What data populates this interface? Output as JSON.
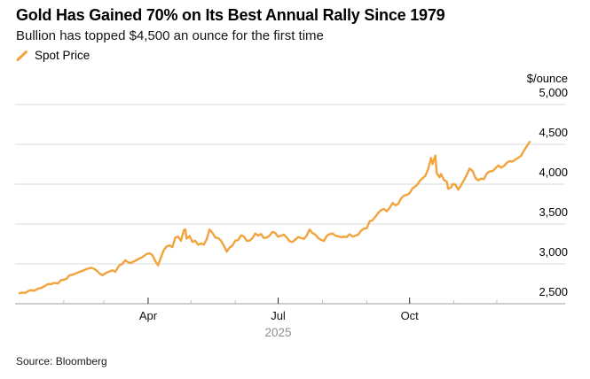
{
  "header": {
    "title": "Gold Has Gained 70% on Its Best Annual Rally Since 1979",
    "subtitle": "Bullion has topped $4,500 an ounce for the first time"
  },
  "legend": {
    "items": [
      {
        "label": "Spot Price",
        "marker": "slash-icon",
        "color": "#F2A33C"
      }
    ]
  },
  "source": "Source: Bloomberg",
  "colors": {
    "accent": "#F2A33C",
    "grid": "#d9d9d9",
    "axis": "#9c9c9c",
    "major_tick": "#2b2b2b",
    "minor_tick": "#bfbfbf",
    "year_text": "#8d8d8d"
  },
  "chart_data": {
    "type": "line",
    "title": "Gold Has Gained 70% on Its Best Annual Rally Since 1979",
    "unit_label": "$/ounce",
    "x_year_label": "2025",
    "ylim": [
      2500,
      5000
    ],
    "y_ticks": [
      5000,
      4500,
      4000,
      3500,
      3000,
      2500
    ],
    "grid": "horizontal-only",
    "legend_position": "top-left",
    "x_unit": "days-since-jan-1-2025",
    "x_ticks": [
      {
        "day": 31,
        "label": "",
        "major": false
      },
      {
        "day": 59,
        "label": "",
        "major": false
      },
      {
        "day": 90,
        "label": "Apr",
        "major": true
      },
      {
        "day": 120,
        "label": "",
        "major": false
      },
      {
        "day": 151,
        "label": "",
        "major": false
      },
      {
        "day": 181,
        "label": "Jul",
        "major": true
      },
      {
        "day": 212,
        "label": "",
        "major": false
      },
      {
        "day": 243,
        "label": "",
        "major": false
      },
      {
        "day": 273,
        "label": "Oct",
        "major": true
      },
      {
        "day": 304,
        "label": "",
        "major": false
      },
      {
        "day": 334,
        "label": "",
        "major": false
      }
    ],
    "series": [
      {
        "name": "Spot Price",
        "color": "#F2A33C",
        "points": [
          [
            0,
            2632
          ],
          [
            2,
            2640
          ],
          [
            4,
            2634
          ],
          [
            6,
            2658
          ],
          [
            8,
            2671
          ],
          [
            10,
            2662
          ],
          [
            13,
            2690
          ],
          [
            15,
            2697
          ],
          [
            17,
            2716
          ],
          [
            20,
            2748
          ],
          [
            22,
            2744
          ],
          [
            24,
            2762
          ],
          [
            27,
            2754
          ],
          [
            29,
            2796
          ],
          [
            31,
            2800
          ],
          [
            33,
            2816
          ],
          [
            35,
            2858
          ],
          [
            37,
            2862
          ],
          [
            40,
            2886
          ],
          [
            42,
            2900
          ],
          [
            45,
            2920
          ],
          [
            47,
            2936
          ],
          [
            50,
            2951
          ],
          [
            52,
            2940
          ],
          [
            54,
            2915
          ],
          [
            56,
            2880
          ],
          [
            58,
            2858
          ],
          [
            61,
            2890
          ],
          [
            63,
            2906
          ],
          [
            65,
            2920
          ],
          [
            67,
            2900
          ],
          [
            70,
            2984
          ],
          [
            72,
            3000
          ],
          [
            74,
            3046
          ],
          [
            76,
            3020
          ],
          [
            78,
            3012
          ],
          [
            81,
            3040
          ],
          [
            83,
            3060
          ],
          [
            86,
            3086
          ],
          [
            89,
            3124
          ],
          [
            91,
            3132
          ],
          [
            93,
            3110
          ],
          [
            95,
            3036
          ],
          [
            97,
            2982
          ],
          [
            99,
            3080
          ],
          [
            101,
            3176
          ],
          [
            103,
            3220
          ],
          [
            105,
            3232
          ],
          [
            107,
            3210
          ],
          [
            109,
            3330
          ],
          [
            111,
            3342
          ],
          [
            113,
            3290
          ],
          [
            115,
            3424
          ],
          [
            116,
            3432
          ],
          [
            117,
            3316
          ],
          [
            119,
            3350
          ],
          [
            121,
            3276
          ],
          [
            123,
            3290
          ],
          [
            125,
            3240
          ],
          [
            127,
            3256
          ],
          [
            129,
            3242
          ],
          [
            131,
            3310
          ],
          [
            133,
            3432
          ],
          [
            135,
            3390
          ],
          [
            137,
            3330
          ],
          [
            139,
            3324
          ],
          [
            141,
            3290
          ],
          [
            143,
            3230
          ],
          [
            145,
            3152
          ],
          [
            147,
            3204
          ],
          [
            149,
            3230
          ],
          [
            151,
            3292
          ],
          [
            153,
            3298
          ],
          [
            155,
            3358
          ],
          [
            157,
            3344
          ],
          [
            159,
            3288
          ],
          [
            161,
            3292
          ],
          [
            163,
            3322
          ],
          [
            165,
            3381
          ],
          [
            167,
            3355
          ],
          [
            169,
            3375
          ],
          [
            171,
            3324
          ],
          [
            173,
            3330
          ],
          [
            175,
            3355
          ],
          [
            177,
            3402
          ],
          [
            179,
            3388
          ],
          [
            181,
            3340
          ],
          [
            183,
            3352
          ],
          [
            185,
            3368
          ],
          [
            187,
            3330
          ],
          [
            189,
            3284
          ],
          [
            191,
            3274
          ],
          [
            193,
            3303
          ],
          [
            195,
            3337
          ],
          [
            197,
            3326
          ],
          [
            199,
            3313
          ],
          [
            201,
            3355
          ],
          [
            203,
            3431
          ],
          [
            205,
            3387
          ],
          [
            207,
            3368
          ],
          [
            209,
            3325
          ],
          [
            211,
            3301
          ],
          [
            213,
            3289
          ],
          [
            215,
            3352
          ],
          [
            217,
            3373
          ],
          [
            219,
            3381
          ],
          [
            221,
            3355
          ],
          [
            223,
            3345
          ],
          [
            225,
            3335
          ],
          [
            227,
            3342
          ],
          [
            229,
            3336
          ],
          [
            231,
            3372
          ],
          [
            233,
            3342
          ],
          [
            235,
            3352
          ],
          [
            237,
            3367
          ],
          [
            239,
            3416
          ],
          [
            241,
            3442
          ],
          [
            243,
            3448
          ],
          [
            245,
            3533
          ],
          [
            247,
            3547
          ],
          [
            249,
            3590
          ],
          [
            251,
            3640
          ],
          [
            253,
            3675
          ],
          [
            255,
            3689
          ],
          [
            257,
            3660
          ],
          [
            259,
            3700
          ],
          [
            261,
            3763
          ],
          [
            263,
            3735
          ],
          [
            265,
            3752
          ],
          [
            267,
            3820
          ],
          [
            269,
            3858
          ],
          [
            271,
            3865
          ],
          [
            273,
            3888
          ],
          [
            275,
            3945
          ],
          [
            276,
            3960
          ],
          [
            278,
            3985
          ],
          [
            280,
            4040
          ],
          [
            282,
            4075
          ],
          [
            284,
            4105
          ],
          [
            286,
            4190
          ],
          [
            288,
            4330
          ],
          [
            289,
            4252
          ],
          [
            291,
            4360
          ],
          [
            292,
            4135
          ],
          [
            294,
            4088
          ],
          [
            295,
            4128
          ],
          [
            297,
            4055
          ],
          [
            299,
            4030
          ],
          [
            300,
            3942
          ],
          [
            302,
            3958
          ],
          [
            303,
            4000
          ],
          [
            305,
            3995
          ],
          [
            307,
            3932
          ],
          [
            309,
            3985
          ],
          [
            311,
            4050
          ],
          [
            313,
            4118
          ],
          [
            315,
            4196
          ],
          [
            317,
            4168
          ],
          [
            319,
            4080
          ],
          [
            321,
            4048
          ],
          [
            323,
            4070
          ],
          [
            325,
            4063
          ],
          [
            327,
            4136
          ],
          [
            329,
            4160
          ],
          [
            331,
            4164
          ],
          [
            333,
            4198
          ],
          [
            335,
            4235
          ],
          [
            337,
            4208
          ],
          [
            339,
            4228
          ],
          [
            341,
            4268
          ],
          [
            343,
            4290
          ],
          [
            345,
            4284
          ],
          [
            347,
            4308
          ],
          [
            349,
            4332
          ],
          [
            351,
            4356
          ],
          [
            353,
            4420
          ],
          [
            355,
            4478
          ],
          [
            357,
            4530
          ]
        ]
      }
    ]
  }
}
